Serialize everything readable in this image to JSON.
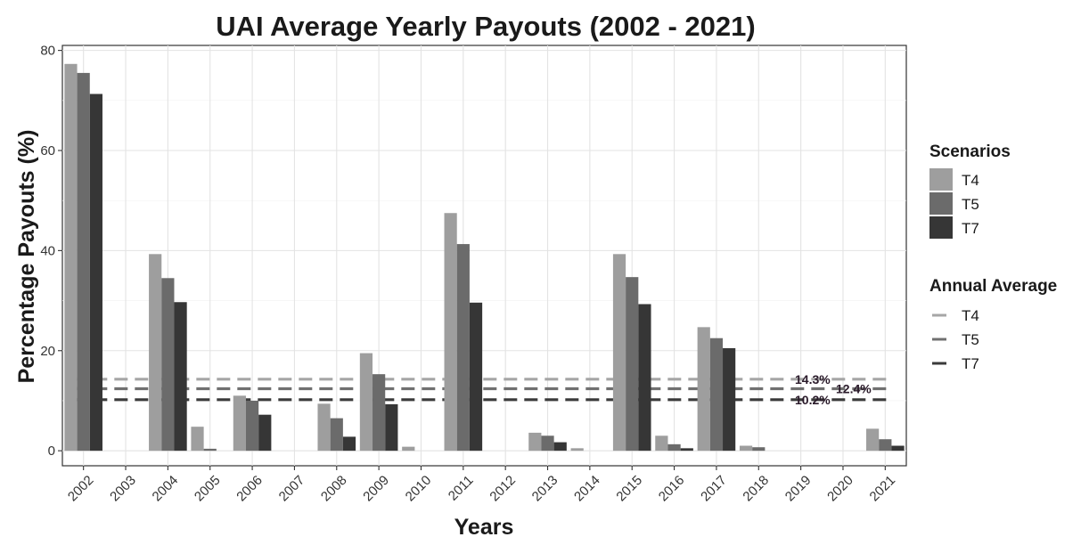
{
  "chart_data": {
    "type": "bar",
    "title": "UAI Average Yearly Payouts (2002 - 2021)",
    "xlabel": "Years",
    "ylabel": "Percentage Payouts (%)",
    "ylim": [
      -3,
      81
    ],
    "yticks": [
      0,
      20,
      40,
      60,
      80
    ],
    "grid": true,
    "legend_position": "right",
    "categories": [
      "2002",
      "2003",
      "2004",
      "2005",
      "2006",
      "2007",
      "2008",
      "2009",
      "2010",
      "2011",
      "2012",
      "2013",
      "2014",
      "2015",
      "2016",
      "2017",
      "2018",
      "2019",
      "2020",
      "2021"
    ],
    "legend": {
      "scenarios_title": "Scenarios",
      "average_title": "Annual Average"
    },
    "series": [
      {
        "name": "T4",
        "color": "#9e9e9e",
        "values": [
          77.3,
          0,
          39.3,
          4.8,
          11.0,
          0,
          9.4,
          19.5,
          0.8,
          47.5,
          0,
          3.6,
          0.5,
          39.3,
          3.0,
          24.7,
          1.0,
          0,
          0,
          4.4
        ]
      },
      {
        "name": "T5",
        "color": "#6b6b6b",
        "values": [
          75.5,
          0,
          34.5,
          0.4,
          10.0,
          0,
          6.5,
          15.3,
          0,
          41.3,
          0,
          3.0,
          0,
          34.7,
          1.3,
          22.5,
          0.7,
          0,
          0,
          2.3
        ]
      },
      {
        "name": "T7",
        "color": "#363636",
        "values": [
          71.3,
          0,
          29.7,
          0,
          7.2,
          0,
          2.8,
          9.3,
          0,
          29.6,
          0,
          1.7,
          0,
          29.3,
          0.5,
          20.5,
          0,
          0,
          0,
          1.0
        ]
      }
    ],
    "averages": [
      {
        "name": "T4",
        "value": 14.3,
        "label": "14.3%",
        "color": "#a6a6a6"
      },
      {
        "name": "T5",
        "value": 12.4,
        "label": "12.4%",
        "color": "#707070"
      },
      {
        "name": "T7",
        "value": 10.2,
        "label": "10.2%",
        "color": "#3a3a3a"
      }
    ]
  }
}
